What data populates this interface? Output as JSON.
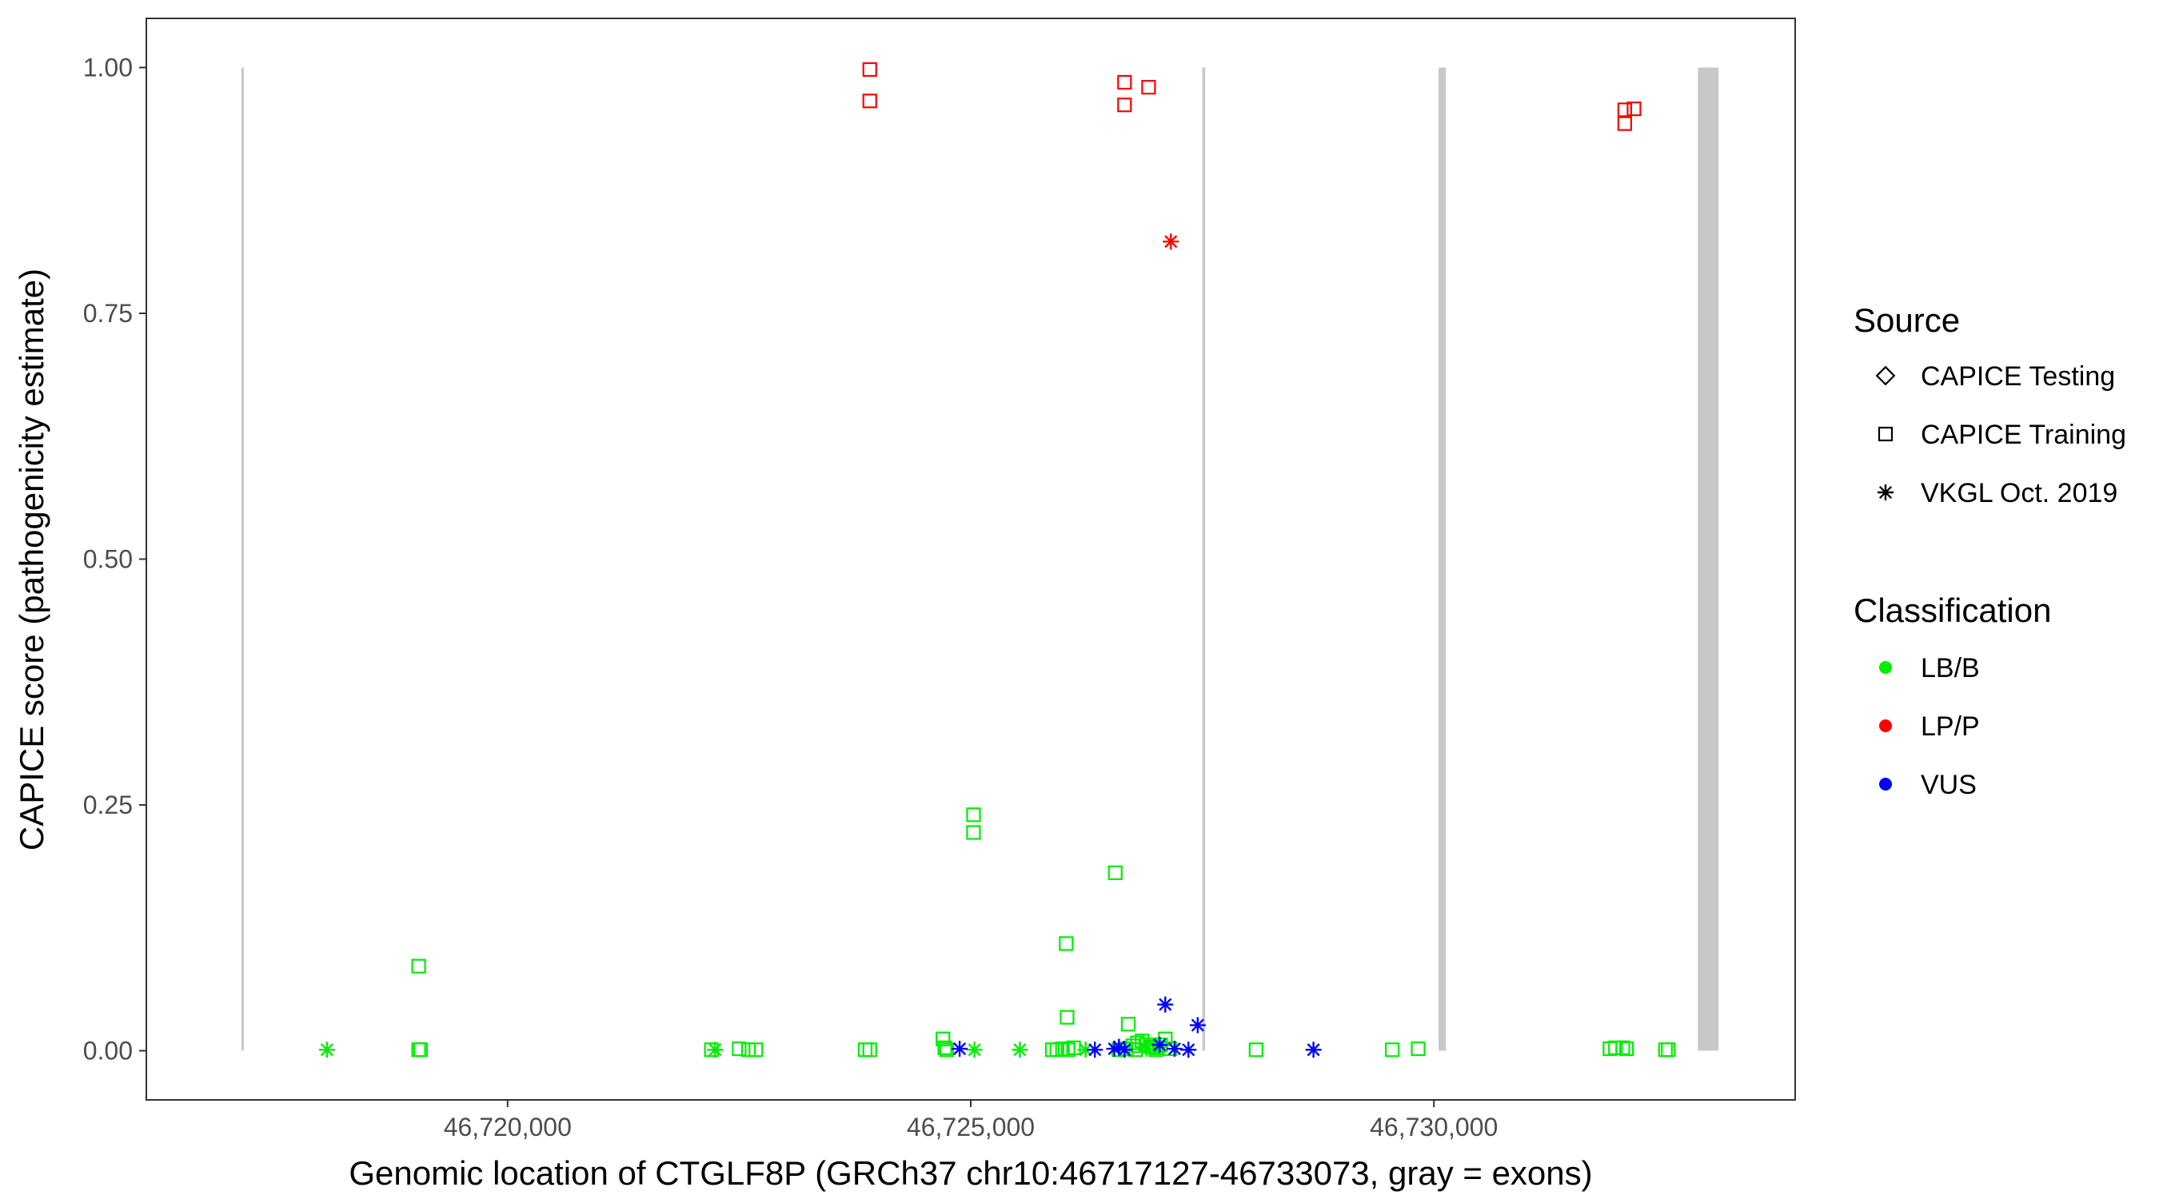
{
  "chart_data": {
    "type": "scatter",
    "xlabel": "Genomic location of CTGLF8P (GRCh37 chr10:46717127-46733073, gray = exons)",
    "ylabel": "CAPICE score (pathogenicity estimate)",
    "xlim": [
      46716100,
      46733900
    ],
    "ylim": [
      -0.05,
      1.05
    ],
    "x_ticks": [
      {
        "value": 46720000,
        "label": "46,720,000"
      },
      {
        "value": 46725000,
        "label": "46,725,000"
      },
      {
        "value": 46730000,
        "label": "46,730,000"
      }
    ],
    "y_ticks": [
      {
        "value": 0.0,
        "label": "0.00"
      },
      {
        "value": 0.25,
        "label": "0.25"
      },
      {
        "value": 0.5,
        "label": "0.50"
      },
      {
        "value": 0.75,
        "label": "0.75"
      },
      {
        "value": 1.0,
        "label": "1.00"
      }
    ],
    "grid": false,
    "legend_position": "right",
    "exons": [
      {
        "start": 46717127,
        "end": 46717150
      },
      {
        "start": 46727500,
        "end": 46727530
      },
      {
        "start": 46730050,
        "end": 46730130
      },
      {
        "start": 46732850,
        "end": 46733073
      }
    ],
    "exon_color": "#c8c8c8",
    "legends": [
      {
        "title": "Source",
        "items": [
          {
            "label": "CAPICE Testing",
            "shape": "diamond"
          },
          {
            "label": "CAPICE Training",
            "shape": "square"
          },
          {
            "label": "VKGL Oct. 2019",
            "shape": "asterisk"
          }
        ]
      },
      {
        "title": "Classification",
        "items": [
          {
            "label": "LB/B",
            "color": "#00ee00"
          },
          {
            "label": "LP/P",
            "color": "#ff0000"
          },
          {
            "label": "VUS",
            "color": "#0000ff"
          }
        ]
      }
    ],
    "series": [
      {
        "name": "LP/P",
        "source": "CAPICE Training",
        "shape": "square",
        "color": "#ff0000",
        "points": [
          [
            46723910,
            0.998
          ],
          [
            46723910,
            0.966
          ],
          [
            46726660,
            0.985
          ],
          [
            46726660,
            0.962
          ],
          [
            46726920,
            0.98
          ],
          [
            46732060,
            0.957
          ],
          [
            46732060,
            0.943
          ],
          [
            46732160,
            0.958
          ]
        ]
      },
      {
        "name": "LP/P",
        "source": "VKGL Oct. 2019",
        "shape": "asterisk",
        "color": "#ff0000",
        "points": [
          [
            46727160,
            0.823
          ]
        ]
      },
      {
        "name": "LB/B",
        "source": "CAPICE Training",
        "shape": "square",
        "color": "#00ee00",
        "points": [
          [
            46719040,
            0.086
          ],
          [
            46719040,
            0.001
          ],
          [
            46719060,
            0.001
          ],
          [
            46722200,
            0.001
          ],
          [
            46722500,
            0.002
          ],
          [
            46722600,
            0.001
          ],
          [
            46722680,
            0.001
          ],
          [
            46723860,
            0.001
          ],
          [
            46723910,
            0.001
          ],
          [
            46724700,
            0.012
          ],
          [
            46724720,
            0.003
          ],
          [
            46724740,
            0.001
          ],
          [
            46725030,
            0.24
          ],
          [
            46725030,
            0.222
          ],
          [
            46726030,
            0.109
          ],
          [
            46726040,
            0.034
          ],
          [
            46726560,
            0.181
          ],
          [
            46726700,
            0.027
          ],
          [
            46725880,
            0.001
          ],
          [
            46725930,
            0.001
          ],
          [
            46725990,
            0.002
          ],
          [
            46726050,
            0.001
          ],
          [
            46726110,
            0.003
          ],
          [
            46726600,
            0.001
          ],
          [
            46726680,
            0.002
          ],
          [
            46726750,
            0.005
          ],
          [
            46726800,
            0.008
          ],
          [
            46726850,
            0.01
          ],
          [
            46726900,
            0.006
          ],
          [
            46726950,
            0.004
          ],
          [
            46727000,
            0.003
          ],
          [
            46727050,
            0.006
          ],
          [
            46727100,
            0.012
          ],
          [
            46727150,
            0.002
          ],
          [
            46727000,
            0.001
          ],
          [
            46726780,
            0.001
          ],
          [
            46728080,
            0.001
          ],
          [
            46729550,
            0.001
          ],
          [
            46729830,
            0.002
          ],
          [
            46731900,
            0.002
          ],
          [
            46731960,
            0.003
          ],
          [
            46732040,
            0.003
          ],
          [
            46732080,
            0.002
          ],
          [
            46732500,
            0.001
          ],
          [
            46732530,
            0.001
          ]
        ]
      },
      {
        "name": "LB/B",
        "source": "VKGL Oct. 2019",
        "shape": "asterisk",
        "color": "#00ee00",
        "points": [
          [
            46718050,
            0.001
          ],
          [
            46722240,
            0.001
          ],
          [
            46725040,
            0.001
          ],
          [
            46725530,
            0.001
          ],
          [
            46726240,
            0.001
          ],
          [
            46726900,
            0.002
          ],
          [
            46727040,
            0.004
          ]
        ]
      },
      {
        "name": "VUS",
        "source": "VKGL Oct. 2019",
        "shape": "asterisk",
        "color": "#0000ff",
        "points": [
          [
            46724880,
            0.002
          ],
          [
            46726340,
            0.001
          ],
          [
            46726550,
            0.002
          ],
          [
            46726600,
            0.004
          ],
          [
            46726660,
            0.001
          ],
          [
            46727040,
            0.006
          ],
          [
            46727100,
            0.047
          ],
          [
            46727200,
            0.002
          ],
          [
            46727350,
            0.001
          ],
          [
            46727450,
            0.026
          ],
          [
            46728700,
            0.001
          ]
        ]
      }
    ]
  }
}
